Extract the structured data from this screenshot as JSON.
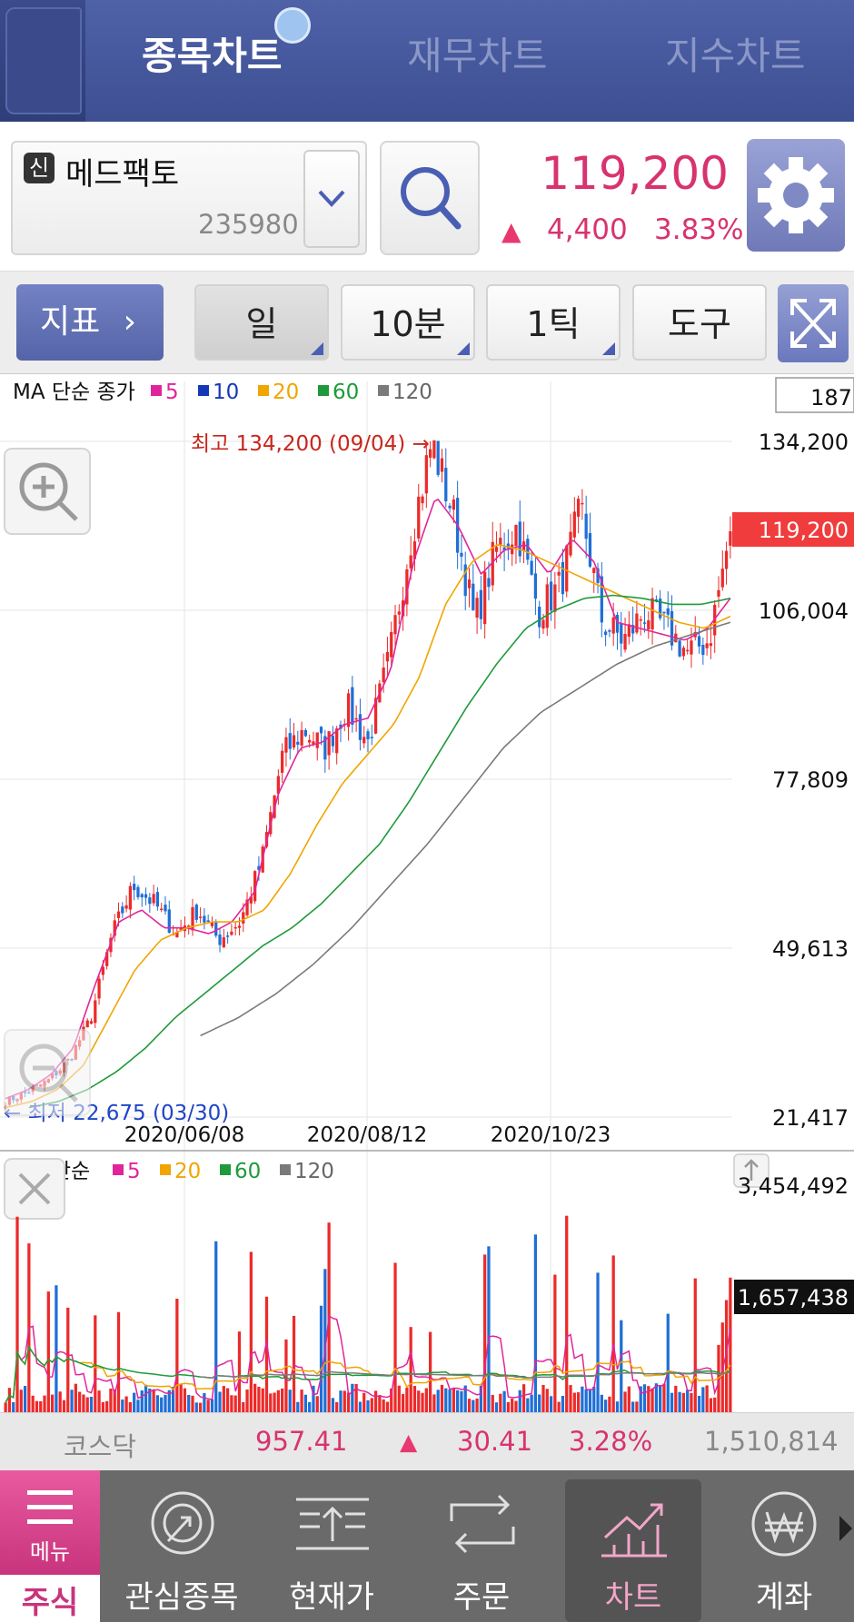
{
  "top_tabs": {
    "items": [
      {
        "label": "종목차트",
        "active": true
      },
      {
        "label": "재무차트",
        "active": false
      },
      {
        "label": "지수차트",
        "active": false
      }
    ]
  },
  "stock": {
    "badge": "신",
    "name": "메드팩토",
    "code": "235980",
    "price": "119,200",
    "change_arrow": "▲",
    "change": "4,400",
    "change_rate": "3.83%"
  },
  "toolbar": {
    "indicator_label": "지표",
    "indicator_chevron": "›",
    "period_day": "일",
    "period_min": "10분",
    "period_tick": "1틱",
    "tools": "도구"
  },
  "price_panel": {
    "ma_legend_prefix": "MA 단순 종가",
    "ma_legend": [
      {
        "label": "5",
        "color": "#e0259c"
      },
      {
        "label": "10",
        "color": "#1538b7"
      },
      {
        "label": "20",
        "color": "#f0a500"
      },
      {
        "label": "60",
        "color": "#1e9a3a"
      },
      {
        "label": "120",
        "color": "#7a7a7a"
      }
    ],
    "visible_count": "187",
    "high_annotation": "최고 134,200 (09/04) →",
    "low_annotation": "← 최저 22,675 (03/30)",
    "y_tick_labels": [
      "134,200",
      "106,004",
      "77,809",
      "49,613",
      "21,417"
    ],
    "current_price_tag": "119,200",
    "x_tick_labels": [
      "2020/06/08",
      "2020/08/12",
      "2020/10/23"
    ]
  },
  "volume_panel": {
    "ma_legend_prefix": "MA 단순",
    "ma_legend": [
      {
        "label": "5",
        "color": "#e0259c"
      },
      {
        "label": "20",
        "color": "#f0a500"
      },
      {
        "label": "60",
        "color": "#1e9a3a"
      },
      {
        "label": "120",
        "color": "#7a7a7a"
      }
    ],
    "max_label": "3,454,492",
    "current_volume_tag": "1,657,438"
  },
  "chart_data": {
    "type": "candlestick",
    "x_ticks": [
      "2020/06/08",
      "2020/08/12",
      "2020/10/23"
    ],
    "y_ticks": [
      134200,
      106004,
      77809,
      49613,
      21417
    ],
    "ylim": [
      21417,
      134200
    ],
    "high": {
      "value": 134200,
      "date": "09/04"
    },
    "low": {
      "value": 22675,
      "date": "03/30"
    },
    "last_close": 119200,
    "close_path": [
      24000,
      25500,
      27500,
      31000,
      38000,
      52000,
      60000,
      57000,
      52000,
      56000,
      51000,
      54000,
      64000,
      82000,
      86000,
      83000,
      90000,
      84000,
      98000,
      118000,
      134200,
      122000,
      104000,
      116000,
      120000,
      106000,
      110000,
      123000,
      104000,
      101000,
      106000,
      103000,
      99000,
      101000,
      119200
    ],
    "ma_series": [
      {
        "name": "5",
        "values": [
          24500,
          26000,
          28500,
          33000,
          44000,
          54000,
          56000,
          53000,
          53000,
          52000,
          54000,
          59000,
          75000,
          83000,
          84000,
          87000,
          88000,
          96000,
          114000,
          125000,
          120000,
          112000,
          116000,
          117000,
          112000,
          118000,
          114000,
          104000,
          103000,
          102000,
          101000,
          103000,
          108000
        ]
      },
      {
        "name": "20",
        "values": [
          23000,
          24000,
          26000,
          30000,
          38000,
          46000,
          51000,
          53000,
          54000,
          54000,
          56000,
          62000,
          70000,
          77000,
          82000,
          87000,
          95000,
          107000,
          114000,
          117000,
          116000,
          114000,
          112000,
          110000,
          108000,
          106000,
          104000,
          103000,
          105000
        ]
      },
      {
        "name": "60",
        "values": [
          23000,
          24000,
          26000,
          29000,
          33000,
          38000,
          42000,
          46000,
          50000,
          53000,
          57000,
          62000,
          67000,
          74000,
          82000,
          90000,
          97000,
          103000,
          106000,
          108000,
          108500,
          108000,
          107000,
          107000,
          108000
        ]
      },
      {
        "name": "120",
        "values": [
          35000,
          38000,
          42000,
          47000,
          53000,
          60000,
          67000,
          75000,
          83000,
          89000,
          93000,
          97000,
          100000,
          102000,
          104000
        ]
      }
    ],
    "volume": {
      "ylim": [
        0,
        3454492
      ],
      "last": 1657438
    }
  },
  "kosdaq": {
    "name": "코스닥",
    "value": "957.41",
    "arrow": "▲",
    "change": "30.41",
    "rate": "3.28%",
    "volume": "1,510,814"
  },
  "bottom_nav": {
    "menu_label": "메뉴",
    "items": [
      {
        "label": "주식",
        "active": true
      },
      {
        "label": "관심종목",
        "active": false
      },
      {
        "label": "현재가",
        "active": false
      },
      {
        "label": "주문",
        "active": false
      },
      {
        "label": "차트",
        "active": true
      },
      {
        "label": "계좌",
        "active": false
      }
    ]
  }
}
